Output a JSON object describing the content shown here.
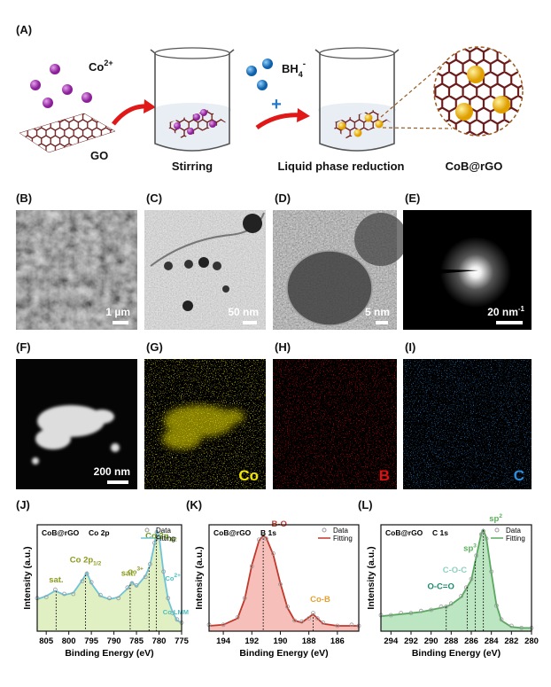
{
  "figure": {
    "panel_labels": [
      "(A)",
      "(B)",
      "(C)",
      "(D)",
      "(E)",
      "(F)",
      "(G)",
      "(H)",
      "(I)",
      "(J)",
      "(K)",
      "(L)"
    ],
    "schematic": {
      "ion": "Co",
      "ion_charge": "2+",
      "support": "GO",
      "step1": "Stirring",
      "reductant": "BH",
      "reductant_sub": "4",
      "reductant_charge": "-",
      "plus": "+",
      "step2": "Liquid phase reduction",
      "product": "CoB@rGO"
    },
    "images": [
      {
        "scale": "1 µm"
      },
      {
        "scale": "50 nm"
      },
      {
        "scale": "5 nm"
      },
      {
        "scale": "20 nm",
        "scale_sup": "-1"
      },
      {
        "scale": "200 nm"
      },
      {
        "element": "Co",
        "color": "#f2e600"
      },
      {
        "element": "B",
        "color": "#e01010"
      },
      {
        "element": "C",
        "color": "#2a8fe0"
      }
    ]
  },
  "chart_data": [
    {
      "type": "line",
      "sample": "CoB@rGO",
      "region": "Co 2p",
      "xlabel": "Binding Energy (eV)",
      "ylabel": "Intensity (a.u.)",
      "xlim": [
        807,
        775
      ],
      "xticks": [
        805,
        800,
        795,
        790,
        785,
        780,
        775
      ],
      "ylim": [
        0,
        100
      ],
      "fill": "#d7ebae",
      "x": [
        807,
        805,
        803,
        801,
        799,
        797,
        796,
        795,
        793,
        791,
        789,
        787,
        786,
        785,
        783,
        782,
        781,
        780.5,
        780,
        779,
        778,
        777,
        776,
        775
      ],
      "series": [
        {
          "name": "Data",
          "color": "#9a9a9a",
          "marker": "circle",
          "values": [
            31,
            32,
            39,
            35,
            35,
            47,
            54,
            46,
            34,
            31,
            31,
            41,
            45,
            43,
            51,
            63,
            83,
            93,
            88,
            56,
            31,
            17,
            11,
            8
          ]
        },
        {
          "name": "Fitting",
          "color": "#6fc3d8",
          "values": [
            30,
            33,
            38,
            34,
            36,
            48,
            55,
            45,
            33,
            30,
            32,
            40,
            46,
            42,
            52,
            62,
            82,
            94,
            90,
            55,
            30,
            18,
            10,
            8
          ]
        }
      ],
      "peak_lines": [
        802.8,
        796.3,
        786.4,
        782.2,
        780.6
      ],
      "annotations": [
        {
          "text": "sat.",
          "x": 802.8,
          "color": "#8a9a1a"
        },
        {
          "text": "Co 2p",
          "sub": "1/2",
          "x": 796.3,
          "color": "#8a9a1a"
        },
        {
          "text": "sat.",
          "x": 786.4,
          "color": "#8a9a1a"
        },
        {
          "text": "Co 2p",
          "sub": "3/2",
          "x": 781.5,
          "color": "#6a9a1a"
        },
        {
          "text": "Co",
          "sup": "3+",
          "x": 784,
          "color": "#8a9a1a"
        },
        {
          "text": "Co",
          "sup": "2+",
          "x": 778.5,
          "color": "#4cc0c0"
        },
        {
          "text": "Co LMM",
          "x": 776.3,
          "color": "#4cc0c0"
        }
      ]
    },
    {
      "type": "line",
      "sample": "CoB@rGO",
      "region": "B 1s",
      "xlabel": "Binding Energy (eV)",
      "ylabel": "Intensity (a.u.)",
      "xlim": [
        195,
        184.5
      ],
      "xticks": [
        194,
        192,
        190,
        188,
        186
      ],
      "ylim": [
        0,
        100
      ],
      "fill": "#f4aaa2",
      "x": [
        195,
        194,
        193,
        192.5,
        192,
        191.5,
        191.2,
        191,
        190.5,
        190,
        189.5,
        189,
        188.5,
        188,
        187.7,
        187.4,
        187,
        186,
        185,
        184.5
      ],
      "series": [
        {
          "name": "Data",
          "color": "#9a9a9a",
          "marker": "circle",
          "values": [
            6,
            6,
            13,
            31,
            61,
            86,
            89,
            87,
            73,
            44,
            23,
            10,
            9,
            12,
            17,
            12,
            8,
            5,
            6,
            5
          ]
        },
        {
          "name": "Fitting",
          "color": "#c0392b",
          "values": [
            5,
            6,
            12,
            30,
            62,
            85,
            90,
            88,
            72,
            45,
            22,
            10,
            8,
            13,
            16,
            12,
            7,
            5,
            5,
            5
          ]
        }
      ],
      "peak_lines": [
        191.2,
        187.7
      ],
      "annotations": [
        {
          "text": "B-O",
          "x": 191.2,
          "color": "#c0392b"
        },
        {
          "text": "Co-B",
          "x": 187.7,
          "color": "#e8a030"
        }
      ]
    },
    {
      "type": "line",
      "sample": "CoB@rGO",
      "region": "C 1s",
      "xlabel": "Binding Energy (eV)",
      "ylabel": "Intensity (a.u.)",
      "xlim": [
        295,
        280
      ],
      "xticks": [
        294,
        292,
        290,
        288,
        286,
        284,
        282,
        280
      ],
      "ylim": [
        0,
        100
      ],
      "fill": "#a6dcae",
      "x": [
        295,
        294,
        293,
        292,
        291,
        290,
        289,
        288.5,
        288,
        287,
        286.5,
        286,
        285.5,
        285,
        284.8,
        284.5,
        284,
        283.5,
        283,
        282,
        281,
        280
      ],
      "series": [
        {
          "name": "Data",
          "color": "#9a9a9a",
          "marker": "circle",
          "values": [
            15,
            15,
            17,
            17,
            19,
            20,
            23,
            23,
            26,
            33,
            41,
            49,
            71,
            91,
            94,
            87,
            56,
            24,
            11,
            5,
            3,
            3
          ]
        },
        {
          "name": "Fitting",
          "color": "#5aa860",
          "values": [
            14,
            15,
            16,
            17,
            18,
            20,
            22,
            23,
            25,
            32,
            40,
            48,
            70,
            92,
            95,
            88,
            55,
            25,
            10,
            4,
            3,
            3
          ]
        }
      ],
      "peak_lines": [
        288.5,
        286.4,
        285.6,
        284.8
      ],
      "annotations": [
        {
          "text": "O-C=O",
          "x": 288.5,
          "color": "#1a8a6a"
        },
        {
          "text": "C-O-C",
          "x": 286.4,
          "color": "#8fd0c0"
        },
        {
          "text": "sp",
          "sup": "3",
          "x": 285.6,
          "color": "#5ab05a"
        },
        {
          "text": "sp",
          "sup": "2",
          "x": 284.8,
          "color": "#5ab05a"
        }
      ]
    }
  ]
}
